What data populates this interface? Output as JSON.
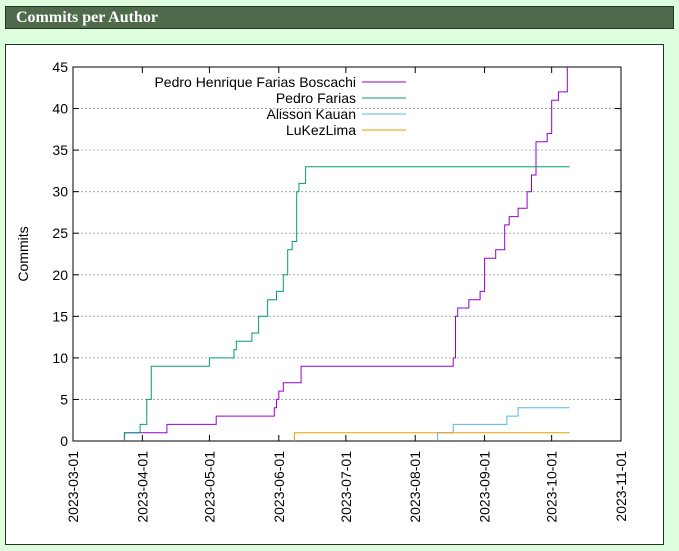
{
  "header": {
    "title": "Commits per Author"
  },
  "chart_data": {
    "type": "line",
    "step": true,
    "title": "",
    "xlabel": "",
    "ylabel": "Commits",
    "ylim": [
      0,
      45
    ],
    "yticks": [
      0,
      5,
      10,
      15,
      20,
      25,
      30,
      35,
      40,
      45
    ],
    "xlim": [
      "2023-03-01",
      "2023-11-01"
    ],
    "xticks": [
      "2023-03-01",
      "2023-04-01",
      "2023-05-01",
      "2023-06-01",
      "2023-07-01",
      "2023-08-01",
      "2023-09-01",
      "2023-10-01",
      "2023-11-01"
    ],
    "grid": "horizontal",
    "legend_position": "top-right",
    "series": [
      {
        "name": "Pedro Henrique Farias Boscachi",
        "color": "#9400d3",
        "points": [
          [
            "2023-03-24",
            1
          ],
          [
            "2023-04-12",
            2
          ],
          [
            "2023-05-03",
            2
          ],
          [
            "2023-05-04",
            3
          ],
          [
            "2023-05-30",
            4
          ],
          [
            "2023-05-31",
            5
          ],
          [
            "2023-06-01",
            6
          ],
          [
            "2023-06-03",
            7
          ],
          [
            "2023-06-11",
            9
          ],
          [
            "2023-08-18",
            10
          ],
          [
            "2023-08-19",
            15
          ],
          [
            "2023-08-20",
            16
          ],
          [
            "2023-08-25",
            17
          ],
          [
            "2023-08-30",
            18
          ],
          [
            "2023-09-01",
            22
          ],
          [
            "2023-09-06",
            23
          ],
          [
            "2023-09-10",
            26
          ],
          [
            "2023-09-12",
            27
          ],
          [
            "2023-09-16",
            28
          ],
          [
            "2023-09-20",
            30
          ],
          [
            "2023-09-22",
            32
          ],
          [
            "2023-09-24",
            36
          ],
          [
            "2023-09-29",
            37
          ],
          [
            "2023-10-01",
            41
          ],
          [
            "2023-10-04",
            42
          ],
          [
            "2023-10-08",
            45
          ]
        ]
      },
      {
        "name": "Pedro Farias",
        "color": "#009e73",
        "points": [
          [
            "2023-03-24",
            1
          ],
          [
            "2023-03-31",
            2
          ],
          [
            "2023-04-03",
            5
          ],
          [
            "2023-04-05",
            9
          ],
          [
            "2023-05-01",
            10
          ],
          [
            "2023-05-12",
            11
          ],
          [
            "2023-05-13",
            12
          ],
          [
            "2023-05-20",
            13
          ],
          [
            "2023-05-23",
            15
          ],
          [
            "2023-05-27",
            17
          ],
          [
            "2023-05-31",
            18
          ],
          [
            "2023-06-03",
            20
          ],
          [
            "2023-06-05",
            23
          ],
          [
            "2023-06-07",
            24
          ],
          [
            "2023-06-09",
            30
          ],
          [
            "2023-06-10",
            31
          ],
          [
            "2023-06-13",
            33
          ],
          [
            "2023-10-09",
            33
          ]
        ]
      },
      {
        "name": "Alisson Kauan",
        "color": "#56b4e9",
        "points": [
          [
            "2023-08-11",
            1
          ],
          [
            "2023-08-18",
            2
          ],
          [
            "2023-09-11",
            3
          ],
          [
            "2023-09-16",
            4
          ],
          [
            "2023-10-09",
            4
          ]
        ]
      },
      {
        "name": "LuKezLima",
        "color": "#e69f00",
        "points": [
          [
            "2023-06-08",
            1
          ],
          [
            "2023-10-09",
            1
          ]
        ]
      }
    ]
  }
}
